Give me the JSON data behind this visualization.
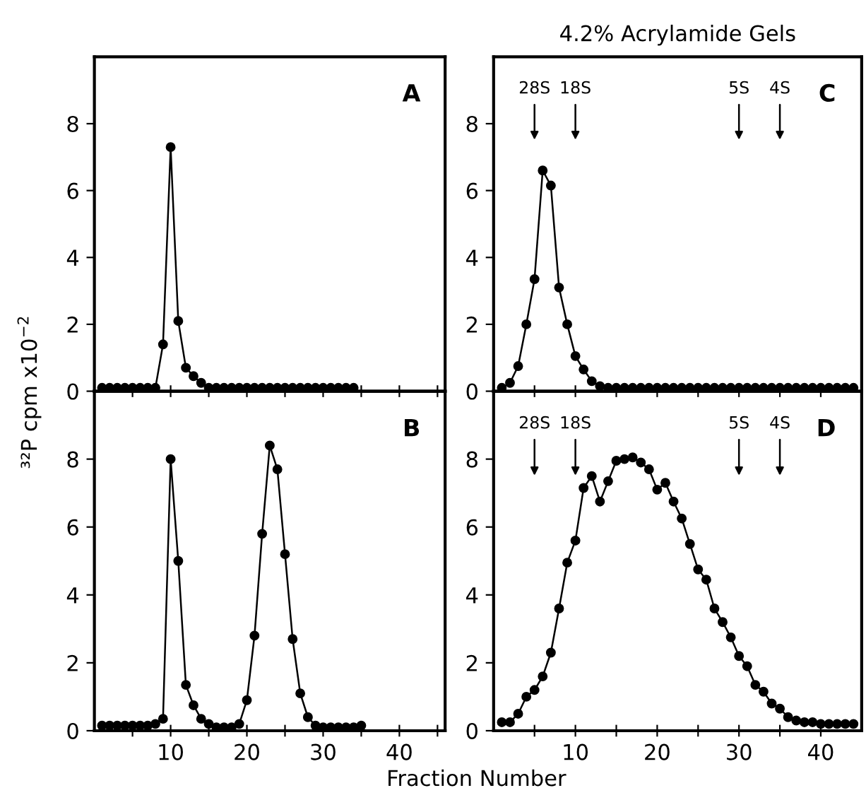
{
  "chart_data": [
    {
      "type": "line",
      "ylabel": "³²P cpm x10$^{−2}$",
      "annotations": [
        "A"
      ],
      "x": [
        1,
        2,
        3,
        4,
        5,
        6,
        7,
        8,
        9,
        10,
        11,
        12,
        13,
        14,
        15,
        16,
        17,
        18,
        19,
        20,
        21,
        22,
        23,
        24,
        25,
        26,
        27,
        28,
        29,
        30,
        31,
        32,
        33,
        34
      ],
      "series": [
        {
          "color": "#000000",
          "values": [
            0.1,
            0.1,
            0.1,
            0.1,
            0.1,
            0.1,
            0.1,
            0.1,
            1.4,
            7.3,
            2.1,
            0.7,
            0.45,
            0.25,
            0.1,
            0.1,
            0.1,
            0.1,
            0.1,
            0.1,
            0.1,
            0.1,
            0.1,
            0.1,
            0.1,
            0.1,
            0.1,
            0.1,
            0.1,
            0.1,
            0.1,
            0.1,
            0.1,
            0.1
          ]
        }
      ],
      "xlim": [
        0,
        46
      ],
      "ylim": [
        0,
        10
      ],
      "xticks": [
        {
          "value": 5,
          "label": null
        },
        10,
        {
          "value": 15,
          "label": null
        },
        20,
        {
          "value": 25,
          "label": null
        },
        30,
        {
          "value": 35,
          "label": null
        },
        40,
        {
          "value": 45,
          "label": null
        }
      ],
      "yticks": [
        0,
        2,
        4,
        6,
        8
      ],
      "tick_labels": "y",
      "grid": false,
      "legend": false,
      "marker": "circle",
      "line_style": "solid"
    },
    {
      "type": "line",
      "title": "4.2% Acrylamide Gels",
      "annotations": [
        "C",
        {
          "text": "28S",
          "x": 5
        },
        {
          "text": "18S",
          "x": 10
        },
        {
          "text": "5S",
          "x": 30
        },
        {
          "text": "4S",
          "x": 35
        }
      ],
      "x": [
        1,
        2,
        3,
        4,
        5,
        6,
        7,
        8,
        9,
        10,
        11,
        12,
        13,
        14,
        15,
        16,
        17,
        18,
        19,
        20,
        21,
        22,
        23,
        24,
        25,
        26,
        27,
        28,
        29,
        30,
        31,
        32,
        33,
        34,
        35,
        36,
        37,
        38,
        39,
        40,
        41,
        42,
        43,
        44
      ],
      "series": [
        {
          "color": "#000000",
          "values": [
            0.1,
            0.25,
            0.75,
            2.0,
            3.35,
            6.6,
            6.15,
            3.1,
            2.0,
            1.05,
            0.65,
            0.3,
            0.15,
            0.1,
            0.1,
            0.1,
            0.1,
            0.1,
            0.1,
            0.1,
            0.1,
            0.1,
            0.1,
            0.1,
            0.1,
            0.1,
            0.1,
            0.1,
            0.1,
            0.1,
            0.1,
            0.1,
            0.1,
            0.1,
            0.1,
            0.1,
            0.1,
            0.1,
            0.1,
            0.1,
            0.1,
            0.1,
            0.1,
            0.1
          ]
        }
      ],
      "xlim": [
        0,
        45
      ],
      "ylim": [
        0,
        10
      ],
      "xticks": [
        {
          "value": 5,
          "label": null
        },
        10,
        {
          "value": 15,
          "label": null
        },
        20,
        {
          "value": 25,
          "label": null
        },
        30,
        {
          "value": 35,
          "label": null
        },
        40
      ],
      "yticks": [
        0,
        2,
        4,
        6,
        8
      ],
      "tick_labels": "y",
      "grid": false,
      "legend": false,
      "marker": "circle",
      "line_style": "solid"
    },
    {
      "type": "line",
      "xlabel": "Fraction Number",
      "annotations": [
        "B"
      ],
      "x": [
        1,
        2,
        3,
        4,
        5,
        6,
        7,
        8,
        9,
        10,
        11,
        12,
        13,
        14,
        15,
        16,
        17,
        18,
        19,
        20,
        21,
        22,
        23,
        24,
        25,
        26,
        27,
        28,
        29,
        30,
        31,
        32,
        33,
        34,
        35
      ],
      "series": [
        {
          "color": "#000000",
          "values": [
            0.15,
            0.15,
            0.15,
            0.15,
            0.15,
            0.15,
            0.15,
            0.2,
            0.35,
            8.0,
            5.0,
            1.35,
            0.75,
            0.35,
            0.2,
            0.1,
            0.1,
            0.1,
            0.2,
            0.9,
            2.8,
            5.8,
            8.4,
            7.7,
            5.2,
            2.7,
            1.1,
            0.4,
            0.15,
            0.1,
            0.1,
            0.1,
            0.1,
            0.1,
            0.15
          ]
        }
      ],
      "xlim": [
        0,
        46
      ],
      "ylim": [
        0,
        10
      ],
      "xticks": [
        {
          "value": 5,
          "label": null
        },
        10,
        {
          "value": 15,
          "label": null
        },
        20,
        {
          "value": 25,
          "label": null
        },
        30,
        {
          "value": 35,
          "label": null
        },
        40,
        {
          "value": 45,
          "label": null
        }
      ],
      "yticks": [
        0,
        2,
        4,
        6,
        8
      ],
      "grid": false,
      "legend": false,
      "marker": "circle",
      "line_style": "solid"
    },
    {
      "type": "line",
      "annotations": [
        "D",
        {
          "text": "28S",
          "x": 5
        },
        {
          "text": "18S",
          "x": 10
        },
        {
          "text": "5S",
          "x": 30
        },
        {
          "text": "4S",
          "x": 35
        }
      ],
      "x": [
        1,
        2,
        3,
        4,
        5,
        6,
        7,
        8,
        9,
        10,
        11,
        12,
        13,
        14,
        15,
        16,
        17,
        18,
        19,
        20,
        21,
        22,
        23,
        24,
        25,
        26,
        27,
        28,
        29,
        30,
        31,
        32,
        33,
        34,
        35,
        36,
        37,
        38,
        39,
        40,
        41,
        42,
        43,
        44
      ],
      "series": [
        {
          "color": "#000000",
          "values": [
            0.25,
            0.25,
            0.5,
            1.0,
            1.2,
            1.6,
            2.3,
            3.6,
            4.95,
            5.6,
            7.15,
            7.5,
            6.75,
            7.35,
            7.95,
            8.0,
            8.05,
            7.9,
            7.7,
            7.1,
            7.3,
            6.75,
            6.25,
            5.5,
            4.75,
            4.45,
            3.6,
            3.2,
            2.75,
            2.2,
            1.9,
            1.35,
            1.15,
            0.8,
            0.65,
            0.4,
            0.3,
            0.25,
            0.25,
            0.2,
            0.2,
            0.2,
            0.2,
            0.2
          ]
        }
      ],
      "xlim": [
        0,
        45
      ],
      "ylim": [
        0,
        10
      ],
      "xticks": [
        {
          "value": 5,
          "label": null
        },
        10,
        {
          "value": 15,
          "label": null
        },
        20,
        {
          "value": 25,
          "label": null
        },
        30,
        {
          "value": 35,
          "label": null
        },
        40
      ],
      "yticks": [
        0,
        2,
        4,
        6,
        8
      ],
      "grid": false,
      "legend": false,
      "marker": "circle",
      "line_style": "solid"
    }
  ]
}
